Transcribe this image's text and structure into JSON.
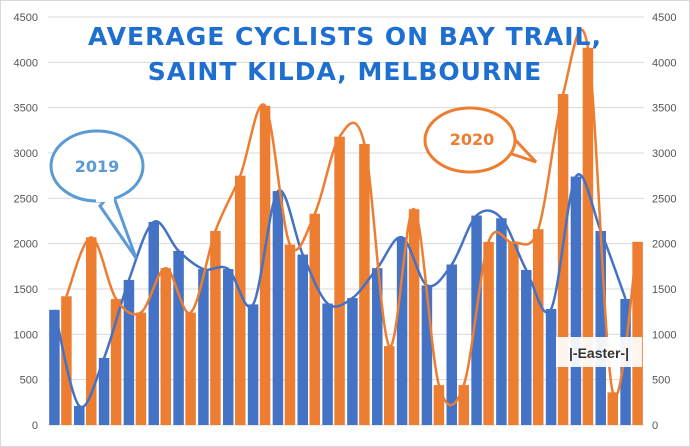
{
  "chart_data": {
    "type": "bar",
    "title_lines": [
      "AVERAGE CYCLISTS ON BAY TRAIL,",
      "SAINT KILDA, MELBOURNE"
    ],
    "ylim": [
      0,
      4500
    ],
    "yticks": [
      0,
      500,
      1000,
      1500,
      2000,
      2500,
      3000,
      3500,
      4000,
      4500
    ],
    "grid": true,
    "series": [
      {
        "name": "2019",
        "color": "#4472c4",
        "values": [
          1270,
          210,
          740,
          1600,
          2240,
          1920,
          1720,
          1720,
          1330,
          2580,
          1880,
          1340,
          1400,
          1730,
          2070,
          1540,
          1770,
          2310,
          2280,
          1710,
          1280,
          2740,
          2140,
          1390
        ]
      },
      {
        "name": "2020",
        "color": "#ed7d31",
        "values": [
          1420,
          2070,
          1390,
          1240,
          1730,
          1240,
          2140,
          2750,
          3520,
          1990,
          2330,
          3180,
          3100,
          870,
          2380,
          440,
          440,
          2020,
          2010,
          2160,
          3650,
          4160,
          360,
          2020
        ]
      }
    ],
    "annotations": {
      "label_2019": "2019",
      "label_2020": "2020",
      "easter": "|-Easter-|"
    }
  }
}
